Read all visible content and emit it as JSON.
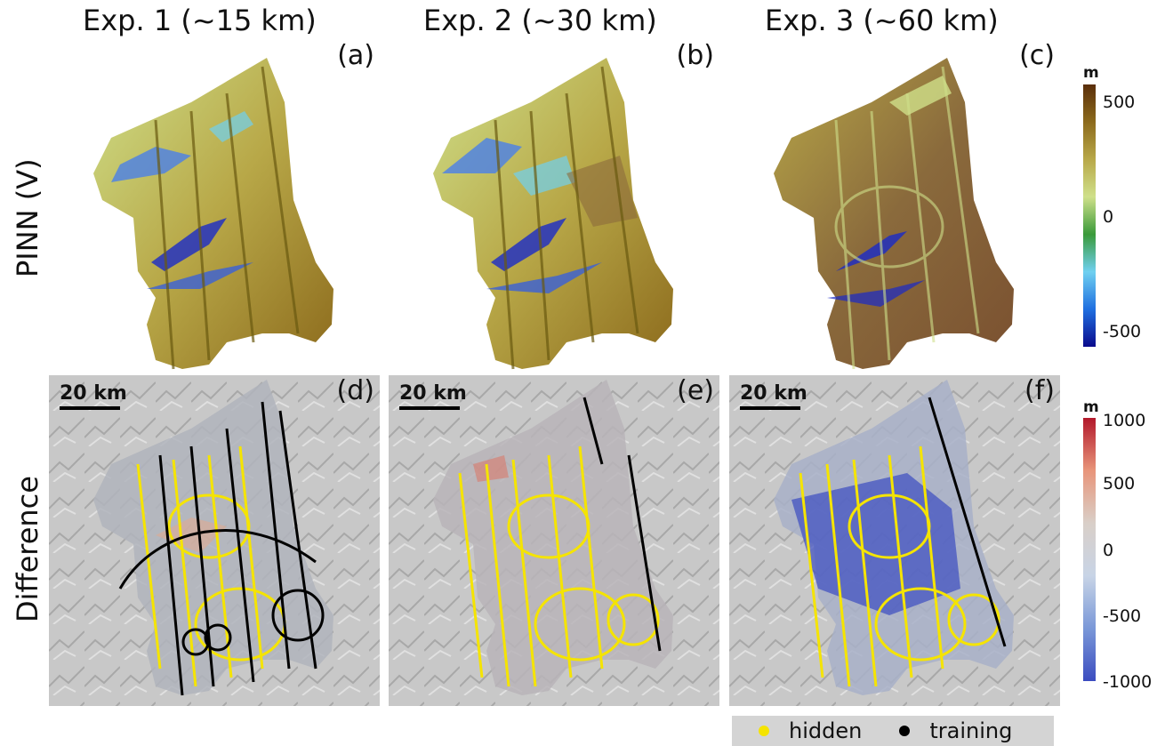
{
  "columns": [
    {
      "title": "Exp. 1 (~15 km)"
    },
    {
      "title": "Exp. 2 (~30 km)"
    },
    {
      "title": "Exp. 3 (~60 km)"
    }
  ],
  "rows": [
    {
      "label": "PINN (V)"
    },
    {
      "label": "Difference"
    }
  ],
  "panels": {
    "a": "(a)",
    "b": "(b)",
    "c": "(c)",
    "d": "(d)",
    "e": "(e)",
    "f": "(f)"
  },
  "scalebar": {
    "label": "20 km"
  },
  "colorbar_top": {
    "unit": "m",
    "ticks": [
      "500",
      "0",
      "-500"
    ],
    "colors": [
      "#5a2e0a",
      "#8c6a1c",
      "#b8a848",
      "#cfe08a",
      "#3a9a3a",
      "#6fd0f0",
      "#1f6fe0",
      "#0a0a8c"
    ]
  },
  "colorbar_bottom": {
    "unit": "m",
    "ticks": [
      "1000",
      "500",
      "0",
      "-500",
      "-1000"
    ],
    "colors": [
      "#b2182b",
      "#e8957a",
      "#d9cfc8",
      "#c8d4e6",
      "#7a98d8",
      "#3b4cc0"
    ]
  },
  "legend": {
    "hidden": "hidden",
    "training": "training",
    "hidden_color": "#f5e400",
    "training_color": "#000000"
  }
}
